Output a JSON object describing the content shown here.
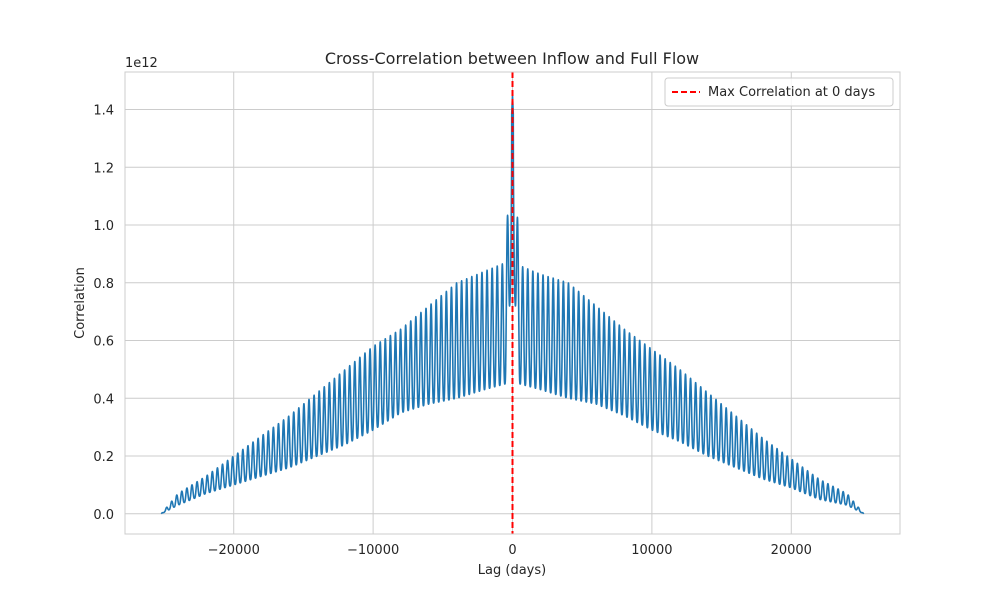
{
  "chart_data": {
    "type": "line",
    "title": "Cross-Correlation between Inflow and Full Flow",
    "xlabel": "Lag (days)",
    "ylabel": "Correlation",
    "y_offset_label": "1e12",
    "y_scale_factor": 1000000000000.0,
    "xlim": [
      -27800,
      27800
    ],
    "ylim": [
      -0.07,
      1.53
    ],
    "x_ticks": [
      -20000,
      -10000,
      0,
      10000,
      20000
    ],
    "x_tick_labels": [
      "−20000",
      "−10000",
      "0",
      "10000",
      "20000"
    ],
    "y_ticks": [
      0.0,
      0.2,
      0.4,
      0.6,
      0.8,
      1.0,
      1.2,
      1.4
    ],
    "y_tick_labels": [
      "0.0",
      "0.2",
      "0.4",
      "0.6",
      "0.8",
      "1.0",
      "1.2",
      "1.4"
    ],
    "grid": true,
    "legend_position": "top-right",
    "series": [
      {
        "color": "#1f77b4",
        "x": [
          -25200,
          -24000,
          -22000,
          -20000,
          -18000,
          -16000,
          -14000,
          -12000,
          -10000,
          -8000,
          -6000,
          -4000,
          -2000,
          -500,
          0,
          500,
          2000,
          4000,
          6000,
          8000,
          10000,
          12000,
          14000,
          16000,
          18000,
          20000,
          22000,
          24000,
          25200
        ],
        "lower": [
          0.0,
          0.03,
          0.07,
          0.1,
          0.13,
          0.16,
          0.2,
          0.24,
          0.29,
          0.35,
          0.38,
          0.4,
          0.43,
          0.45,
          0.9,
          0.45,
          0.43,
          0.4,
          0.38,
          0.34,
          0.29,
          0.25,
          0.2,
          0.16,
          0.12,
          0.09,
          0.05,
          0.03,
          0.0
        ],
        "upper": [
          0.0,
          0.07,
          0.13,
          0.2,
          0.27,
          0.34,
          0.42,
          0.5,
          0.58,
          0.64,
          0.72,
          0.8,
          0.84,
          0.87,
          1.45,
          0.86,
          0.83,
          0.8,
          0.72,
          0.64,
          0.57,
          0.5,
          0.42,
          0.34,
          0.26,
          0.19,
          0.12,
          0.07,
          0.0
        ],
        "oscillation_period": 365
      },
      {
        "name": "Max Correlation at 0 days",
        "type": "vline",
        "x": 0,
        "color": "#ff0000",
        "dash": true
      }
    ]
  }
}
